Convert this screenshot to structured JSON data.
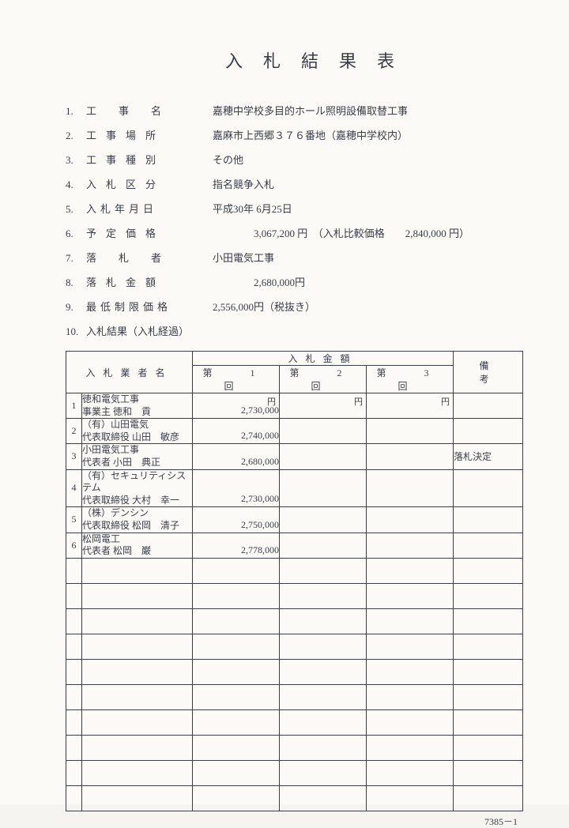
{
  "title": "入札結果表",
  "fields": [
    {
      "num": "1.",
      "label": "工事名",
      "labelClass": "ls-4",
      "value": "嘉穂中学校多目的ホール照明設備取替工事"
    },
    {
      "num": "2.",
      "label": "工事場所",
      "labelClass": "ls-3",
      "value": "嘉麻市上西郷３７６番地（嘉穂中学校内）"
    },
    {
      "num": "3.",
      "label": "工事種別",
      "labelClass": "ls-3",
      "value": "その他"
    },
    {
      "num": "4.",
      "label": "入札区分",
      "labelClass": "ls-3",
      "value": "指名競争入札"
    },
    {
      "num": "5.",
      "label": "入札年月日",
      "labelClass": "ls-date",
      "value": "平成30年 6月25日"
    },
    {
      "num": "6.",
      "label": "予定価格",
      "labelClass": "ls-3",
      "value": "3,067,200 円　（入札比較価格　　2,840,000 円）",
      "indent": true
    },
    {
      "num": "7.",
      "label": "落札者",
      "labelClass": "ls-4",
      "value": "小田電気工事"
    },
    {
      "num": "8.",
      "label": "落札金額",
      "labelClass": "ls-3",
      "value": "2,680,000円",
      "indent": true
    },
    {
      "num": "9.",
      "label": "最低制限価格",
      "labelClass": "ls-2a",
      "value": "2,556,000円（税抜き）"
    },
    {
      "num": "10.",
      "label": "入札結果（入札経過）",
      "labelClass": "",
      "value": ""
    }
  ],
  "tableHeaders": {
    "bidder": "入札業者名",
    "amountGroup": "入札金額",
    "rounds": [
      "第　1　回",
      "第　2　回",
      "第　3　回"
    ],
    "remark": "備　　　考",
    "unit": "円"
  },
  "rows": [
    {
      "idx": "1",
      "name1": "徳和電気工事",
      "name2": "事業主 徳和　貢",
      "amt1": "2,730,000",
      "remark": ""
    },
    {
      "idx": "2",
      "name1": "（有）山田電気",
      "name2": "代表取締役 山田　敏彦",
      "amt1": "2,740,000",
      "remark": ""
    },
    {
      "idx": "3",
      "name1": "小田電気工事",
      "name2": "代表者 小田　典正",
      "amt1": "2,680,000",
      "remark": "落札決定"
    },
    {
      "idx": "4",
      "name1": "（有）セキュリティシステム",
      "name2": "代表取締役 大村　幸一",
      "amt1": "2,730,000",
      "remark": ""
    },
    {
      "idx": "5",
      "name1": "（株）デンシン",
      "name2": "代表取締役 松岡　清子",
      "amt1": "2,750,000",
      "remark": ""
    },
    {
      "idx": "6",
      "name1": "松岡電工",
      "name2": "代表者 松岡　巌",
      "amt1": "2,778,000",
      "remark": ""
    }
  ],
  "emptyRows": 10,
  "footer": "7385－1"
}
